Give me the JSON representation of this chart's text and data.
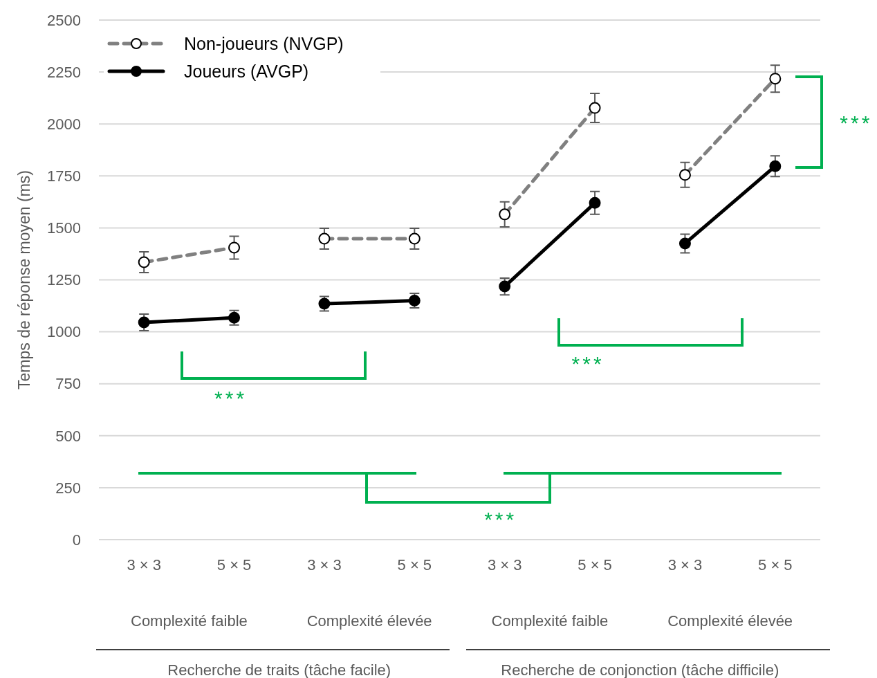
{
  "chart_data": {
    "type": "line",
    "ylabel": "Temps de réponse moyen (ms)",
    "categories": [
      "3 × 3",
      "5 × 5",
      "3 × 3",
      "5 × 5",
      "3 × 3",
      "5 × 5",
      "3 × 3",
      "5 × 5"
    ],
    "ylim": [
      0,
      2500
    ],
    "yticks": [
      0,
      250,
      500,
      750,
      1000,
      1250,
      1500,
      1750,
      2000,
      2250,
      2500
    ],
    "grid": "y",
    "legend": "top left",
    "marker": "circle",
    "series": [
      {
        "name": "Non-joueurs (NVGP)",
        "color": "#808080",
        "line_style": "dashed",
        "values": [
          1335,
          1405,
          null,
          null,
          null,
          null,
          null,
          null
        ],
        "errors": [
          50,
          55,
          null,
          null,
          null,
          null,
          null,
          null
        ]
      },
      {
        "name": "Joueurs (AVGP)",
        "color": "#000000",
        "line_style": "solid",
        "values": [
          1045,
          1068,
          null,
          null,
          null,
          null,
          null,
          null
        ],
        "errors": [
          40,
          35,
          null,
          null,
          null,
          null,
          null,
          null
        ]
      },
      {
        "color": "#808080",
        "line_style": "dashed",
        "values": [
          null,
          null,
          1448,
          1448,
          null,
          null,
          null,
          null
        ],
        "errors": [
          null,
          null,
          50,
          50,
          null,
          null,
          null,
          null
        ]
      },
      {
        "color": "#000000",
        "line_style": "solid",
        "values": [
          null,
          null,
          1135,
          1150,
          null,
          null,
          null,
          null
        ],
        "errors": [
          null,
          null,
          35,
          35,
          null,
          null,
          null,
          null
        ]
      },
      {
        "color": "#808080",
        "line_style": "dashed",
        "values": [
          null,
          null,
          null,
          null,
          1565,
          2077,
          null,
          null
        ],
        "errors": [
          null,
          null,
          null,
          null,
          60,
          70,
          null,
          null
        ]
      },
      {
        "color": "#000000",
        "line_style": "solid",
        "values": [
          null,
          null,
          null,
          null,
          1218,
          1620,
          null,
          null
        ],
        "errors": [
          null,
          null,
          null,
          null,
          40,
          55,
          null,
          null
        ]
      },
      {
        "color": "#808080",
        "line_style": "dashed",
        "values": [
          null,
          null,
          null,
          null,
          null,
          null,
          1755,
          2218
        ],
        "errors": [
          null,
          null,
          null,
          null,
          null,
          null,
          60,
          65
        ]
      },
      {
        "color": "#000000",
        "line_style": "solid",
        "values": [
          null,
          null,
          null,
          null,
          null,
          null,
          1425,
          1797
        ],
        "errors": [
          null,
          null,
          null,
          null,
          null,
          null,
          45,
          50
        ]
      }
    ],
    "annotations": [
      "Complexité faible",
      "Complexité élevée",
      "Complexité faible",
      "Complexité élevée",
      "Recherche de traits (tâche facile)",
      "Recherche de conjonction (tâche difficile)",
      "***",
      "***",
      "***",
      "***"
    ]
  }
}
